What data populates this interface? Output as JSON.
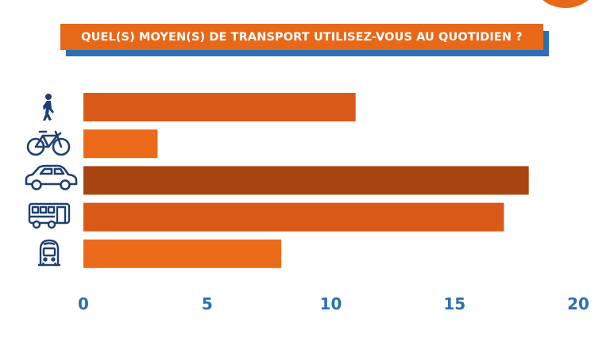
{
  "title": "QUEL(S) MOYEN(S) DE TRANSPORT UTILISEZ-VOUS AU QUOTIDIEN ?",
  "colors": {
    "accent": "#e8681a",
    "title_shadow": "#2c6fb6",
    "icon": "#1f3f73",
    "tick": "#2c6fb6"
  },
  "chart_data": {
    "type": "bar",
    "orientation": "horizontal",
    "categories": [
      "walking-icon",
      "bicycle-icon",
      "car-icon",
      "bus-icon",
      "train-icon"
    ],
    "values": [
      11,
      3,
      18,
      17,
      8
    ],
    "bar_colors": [
      "#d95a18",
      "#ec6b1a",
      "#a8440f",
      "#d95a18",
      "#ec6b1a"
    ],
    "xlim": [
      0,
      20
    ],
    "xticks": [
      "0",
      "5",
      "10",
      "15",
      "20"
    ],
    "grid": false,
    "legend": "none"
  }
}
